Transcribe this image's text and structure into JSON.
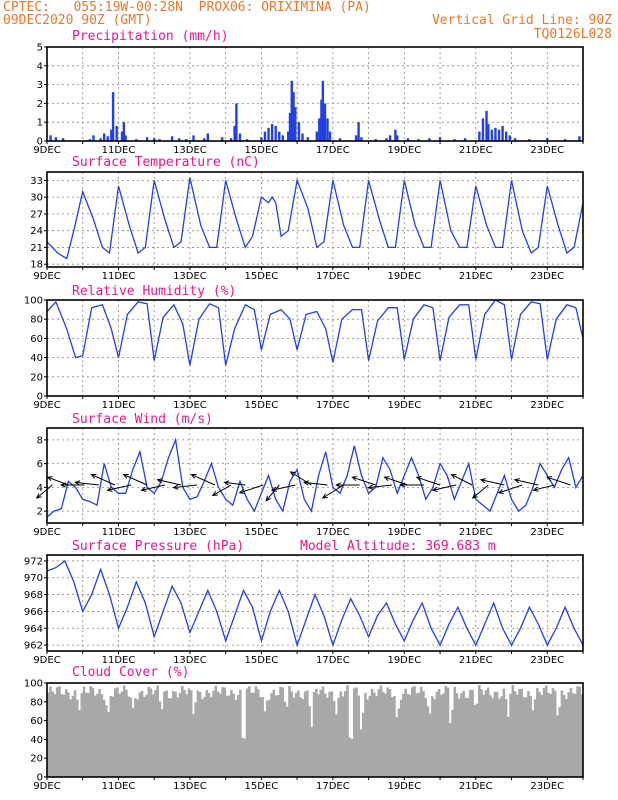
{
  "header": {
    "line1_left": "CPTEC:   055:19W-00:28N  PROX06: ORIXIMINA (PA)",
    "line2_left": "09DEC2020 90Z (GMT)",
    "line2_right": "Vertical Grid Line: 90Z",
    "line3_right": "TQ0126L028"
  },
  "colors": {
    "header": "#e8792c",
    "title": "#e6198a",
    "line": "#2440e0",
    "bar": "#2440e0",
    "cloud": "#a8a8a8",
    "arrow": "#000000"
  },
  "chart_data": [
    {
      "type": "bar",
      "title": "Precipitation (mm/h)",
      "x_ticks": [
        "9DEC",
        "11DEC",
        "13DEC",
        "15DEC",
        "17DEC",
        "19DEC",
        "21DEC",
        "23DEC"
      ],
      "ylim": [
        0,
        5
      ],
      "y_ticks": [
        0,
        1,
        2,
        3,
        4,
        5
      ],
      "grid": true,
      "x_range": [
        0,
        15
      ],
      "points": [
        [
          0.1,
          0.3
        ],
        [
          0.25,
          0.2
        ],
        [
          0.45,
          0.15
        ],
        [
          1.2,
          0.1
        ],
        [
          1.3,
          0.3
        ],
        [
          1.5,
          0.15
        ],
        [
          1.6,
          0.4
        ],
        [
          1.7,
          0.25
        ],
        [
          1.8,
          0.6
        ],
        [
          1.85,
          2.6
        ],
        [
          1.95,
          0.8
        ],
        [
          2.1,
          0.5
        ],
        [
          2.15,
          1.0
        ],
        [
          2.2,
          0.3
        ],
        [
          2.5,
          0.1
        ],
        [
          2.8,
          0.2
        ],
        [
          3.0,
          0.15
        ],
        [
          3.15,
          0.1
        ],
        [
          3.5,
          0.25
        ],
        [
          3.7,
          0.15
        ],
        [
          3.9,
          0.1
        ],
        [
          4.1,
          0.3
        ],
        [
          4.4,
          0.15
        ],
        [
          4.5,
          0.4
        ],
        [
          4.9,
          0.2
        ],
        [
          5.15,
          0.15
        ],
        [
          5.25,
          0.8
        ],
        [
          5.3,
          2.0
        ],
        [
          5.4,
          0.4
        ],
        [
          5.6,
          0.1
        ],
        [
          6.0,
          0.2
        ],
        [
          6.1,
          0.5
        ],
        [
          6.2,
          0.7
        ],
        [
          6.3,
          0.9
        ],
        [
          6.4,
          0.8
        ],
        [
          6.5,
          0.5
        ],
        [
          6.6,
          0.3
        ],
        [
          6.75,
          0.5
        ],
        [
          6.8,
          1.5
        ],
        [
          6.85,
          3.2
        ],
        [
          6.9,
          2.6
        ],
        [
          6.95,
          1.8
        ],
        [
          7.05,
          1.0
        ],
        [
          7.15,
          0.4
        ],
        [
          7.3,
          0.2
        ],
        [
          7.55,
          0.5
        ],
        [
          7.62,
          1.2
        ],
        [
          7.68,
          2.2
        ],
        [
          7.72,
          3.2
        ],
        [
          7.78,
          2.0
        ],
        [
          7.85,
          1.2
        ],
        [
          7.92,
          0.5
        ],
        [
          8.2,
          0.15
        ],
        [
          8.65,
          0.3
        ],
        [
          8.72,
          1.0
        ],
        [
          8.8,
          0.2
        ],
        [
          9.2,
          0.1
        ],
        [
          9.5,
          0.15
        ],
        [
          9.6,
          0.3
        ],
        [
          9.75,
          0.6
        ],
        [
          9.8,
          0.3
        ],
        [
          10.1,
          0.15
        ],
        [
          10.4,
          0.1
        ],
        [
          10.7,
          0.15
        ],
        [
          11.0,
          0.2
        ],
        [
          11.4,
          0.1
        ],
        [
          11.7,
          0.15
        ],
        [
          12.1,
          0.5
        ],
        [
          12.2,
          1.2
        ],
        [
          12.3,
          1.6
        ],
        [
          12.35,
          0.9
        ],
        [
          12.45,
          0.6
        ],
        [
          12.55,
          0.7
        ],
        [
          12.65,
          0.6
        ],
        [
          12.75,
          0.8
        ],
        [
          12.85,
          0.5
        ],
        [
          12.95,
          0.3
        ],
        [
          13.1,
          0.15
        ],
        [
          13.5,
          0.1
        ],
        [
          14.0,
          0.15
        ],
        [
          14.5,
          0.1
        ],
        [
          14.9,
          0.25
        ]
      ]
    },
    {
      "type": "line",
      "title": "Surface Temperature (nC)",
      "x_ticks": [
        "9DEC",
        "11DEC",
        "13DEC",
        "15DEC",
        "17DEC",
        "19DEC",
        "21DEC",
        "23DEC"
      ],
      "ylim": [
        17.5,
        34.5
      ],
      "y_ticks": [
        18,
        21,
        24,
        27,
        30,
        33
      ],
      "grid": true,
      "x_range": [
        0,
        15
      ],
      "x": [
        0,
        0.3,
        0.55,
        0.75,
        1.0,
        1.3,
        1.55,
        1.75,
        2.0,
        2.3,
        2.55,
        2.75,
        3.0,
        3.3,
        3.55,
        3.75,
        4.0,
        4.3,
        4.55,
        4.75,
        5.0,
        5.3,
        5.55,
        5.75,
        6.0,
        6.2,
        6.3,
        6.4,
        6.55,
        6.75,
        7.0,
        7.3,
        7.55,
        7.75,
        8.0,
        8.3,
        8.55,
        8.75,
        9.0,
        9.3,
        9.55,
        9.75,
        10.0,
        10.3,
        10.55,
        10.75,
        11.0,
        11.3,
        11.55,
        11.75,
        12.0,
        12.3,
        12.55,
        12.75,
        13.0,
        13.3,
        13.55,
        13.75,
        14.0,
        14.3,
        14.55,
        14.75,
        15.0
      ],
      "y": [
        22,
        20,
        19,
        24,
        31,
        26,
        21,
        20,
        32,
        25,
        20,
        21,
        33,
        26,
        21,
        22,
        33.5,
        25,
        21,
        21,
        33,
        26,
        21,
        23,
        30,
        29,
        30,
        29,
        23,
        24,
        33,
        28,
        21,
        22,
        33,
        25,
        21,
        21,
        33,
        26,
        21,
        21,
        33,
        25,
        21,
        21,
        33,
        24,
        21,
        21,
        32,
        25,
        21,
        21,
        33,
        24,
        20,
        21,
        32,
        25,
        20,
        21,
        29
      ]
    },
    {
      "type": "line",
      "title": "Relative Humidity (%)",
      "x_ticks": [
        "9DEC",
        "11DEC",
        "13DEC",
        "15DEC",
        "17DEC",
        "19DEC",
        "21DEC",
        "23DEC"
      ],
      "ylim": [
        0,
        100
      ],
      "y_ticks": [
        0,
        20,
        40,
        60,
        80,
        100
      ],
      "grid": true,
      "x_range": [
        0,
        15
      ],
      "x": [
        0,
        0.25,
        0.55,
        0.8,
        1.0,
        1.25,
        1.55,
        1.8,
        2.0,
        2.25,
        2.55,
        2.8,
        3.0,
        3.25,
        3.55,
        3.8,
        4.0,
        4.25,
        4.55,
        4.8,
        5.0,
        5.25,
        5.55,
        5.8,
        6.0,
        6.25,
        6.55,
        6.8,
        7.0,
        7.25,
        7.55,
        7.8,
        8.0,
        8.25,
        8.55,
        8.8,
        9.0,
        9.25,
        9.55,
        9.8,
        10.0,
        10.25,
        10.55,
        10.8,
        11.0,
        11.25,
        11.55,
        11.8,
        12.0,
        12.25,
        12.55,
        12.8,
        13.0,
        13.25,
        13.55,
        13.8,
        14.0,
        14.25,
        14.55,
        14.8,
        15.0
      ],
      "y": [
        88,
        98,
        70,
        40,
        42,
        92,
        95,
        70,
        40,
        85,
        98,
        96,
        37,
        82,
        95,
        75,
        32,
        80,
        96,
        92,
        32,
        70,
        95,
        90,
        48,
        85,
        90,
        80,
        48,
        85,
        88,
        70,
        35,
        80,
        90,
        90,
        37,
        78,
        92,
        92,
        38,
        80,
        95,
        92,
        37,
        82,
        95,
        95,
        38,
        85,
        100,
        95,
        38,
        85,
        98,
        96,
        38,
        80,
        95,
        92,
        60
      ]
    },
    {
      "type": "line",
      "title": "Surface Wind (m/s)",
      "x_ticks": [
        "9DEC",
        "11DEC",
        "13DEC",
        "15DEC",
        "17DEC",
        "19DEC",
        "21DEC",
        "23DEC"
      ],
      "ylim": [
        1,
        9
      ],
      "y_ticks": [
        2,
        4,
        6,
        8
      ],
      "grid": true,
      "x_range": [
        0,
        15
      ],
      "x": [
        0,
        0.2,
        0.4,
        0.6,
        0.8,
        1.0,
        1.2,
        1.4,
        1.6,
        1.8,
        2.0,
        2.2,
        2.4,
        2.6,
        2.8,
        3.0,
        3.2,
        3.4,
        3.6,
        3.8,
        4.0,
        4.2,
        4.4,
        4.6,
        4.8,
        5.0,
        5.2,
        5.4,
        5.6,
        5.8,
        6.0,
        6.2,
        6.4,
        6.6,
        6.8,
        7.0,
        7.2,
        7.4,
        7.6,
        7.8,
        8.0,
        8.2,
        8.4,
        8.6,
        8.8,
        9.0,
        9.2,
        9.4,
        9.6,
        9.8,
        10.0,
        10.2,
        10.4,
        10.6,
        10.8,
        11.0,
        11.2,
        11.4,
        11.6,
        11.8,
        12.0,
        12.2,
        12.4,
        12.6,
        12.8,
        13.0,
        13.2,
        13.4,
        13.6,
        13.8,
        14.0,
        14.2,
        14.4,
        14.6,
        14.8,
        15.0
      ],
      "y": [
        1.5,
        2.0,
        2.2,
        4.5,
        4.0,
        3.0,
        2.8,
        2.5,
        6.0,
        4.0,
        3.5,
        3.5,
        5.5,
        7.0,
        4.0,
        3.5,
        4.5,
        6.5,
        8.0,
        4.0,
        3.0,
        3.2,
        4.5,
        6.0,
        4.0,
        3.0,
        2.5,
        4.5,
        3.0,
        2.0,
        3.5,
        5.0,
        3.0,
        2.0,
        4.5,
        5.5,
        3.0,
        2.0,
        5.0,
        7.0,
        4.0,
        3.5,
        5.0,
        7.5,
        5.0,
        3.5,
        4.0,
        6.5,
        5.5,
        3.5,
        5.0,
        6.5,
        5.0,
        3.0,
        4.0,
        6.0,
        5.0,
        3.0,
        4.5,
        6.0,
        3.0,
        2.5,
        2.0,
        3.5,
        5.0,
        3.0,
        2.0,
        2.5,
        4.0,
        6.0,
        5.0,
        4.0,
        5.5,
        6.5,
        4.0,
        5.0
      ],
      "vectors": [
        {
          "x": 0.15,
          "u": -0.6,
          "v": -0.5
        },
        {
          "x": 0.6,
          "u": -0.8,
          "v": 0.3
        },
        {
          "x": 1.05,
          "u": -0.9,
          "v": 0.0
        },
        {
          "x": 1.45,
          "u": -0.9,
          "v": 0.1
        },
        {
          "x": 1.9,
          "u": -0.9,
          "v": 0.4
        },
        {
          "x": 2.35,
          "u": -0.9,
          "v": -0.2
        },
        {
          "x": 2.8,
          "u": -0.9,
          "v": 0.4
        },
        {
          "x": 3.3,
          "u": -0.9,
          "v": -0.2
        },
        {
          "x": 3.75,
          "u": -0.9,
          "v": 0.2
        },
        {
          "x": 4.2,
          "u": -0.9,
          "v": -0.1
        },
        {
          "x": 4.7,
          "u": -0.9,
          "v": 0.4
        },
        {
          "x": 5.15,
          "u": -0.7,
          "v": -0.4
        },
        {
          "x": 5.55,
          "u": -0.8,
          "v": 0.1
        },
        {
          "x": 6.05,
          "u": -0.9,
          "v": -0.3
        },
        {
          "x": 6.5,
          "u": -0.5,
          "v": -0.6
        },
        {
          "x": 6.95,
          "u": -0.9,
          "v": -0.2
        },
        {
          "x": 7.4,
          "u": -0.8,
          "v": 0.5
        },
        {
          "x": 7.85,
          "u": -0.9,
          "v": 0.1
        },
        {
          "x": 8.3,
          "u": -0.8,
          "v": -0.5
        },
        {
          "x": 8.75,
          "u": -0.9,
          "v": 0.0
        },
        {
          "x": 9.2,
          "u": -0.9,
          "v": 0.3
        },
        {
          "x": 9.65,
          "u": -0.9,
          "v": -0.1
        },
        {
          "x": 10.1,
          "u": -0.9,
          "v": 0.3
        },
        {
          "x": 10.55,
          "u": -0.9,
          "v": 0.0
        },
        {
          "x": 11.0,
          "u": -0.9,
          "v": 0.3
        },
        {
          "x": 11.45,
          "u": -0.9,
          "v": -0.2
        },
        {
          "x": 11.9,
          "u": -0.8,
          "v": 0.4
        },
        {
          "x": 12.35,
          "u": -0.6,
          "v": -0.5
        },
        {
          "x": 12.8,
          "u": -0.9,
          "v": 0.2
        },
        {
          "x": 13.3,
          "u": -0.9,
          "v": -0.3
        },
        {
          "x": 13.75,
          "u": -0.9,
          "v": 0.2
        },
        {
          "x": 14.2,
          "u": -0.8,
          "v": -0.2
        },
        {
          "x": 14.65,
          "u": -0.9,
          "v": 0.3
        }
      ]
    },
    {
      "type": "line",
      "title": "Surface Pressure (hPa)",
      "annotation": "Model Altitude: 369.683 m",
      "x_ticks": [
        "9DEC",
        "11DEC",
        "13DEC",
        "15DEC",
        "17DEC",
        "19DEC",
        "21DEC",
        "23DEC"
      ],
      "ylim": [
        961.3,
        972.7
      ],
      "y_ticks": [
        962,
        964,
        966,
        968,
        970,
        972
      ],
      "grid": true,
      "x_range": [
        0,
        15
      ],
      "x": [
        0,
        0.25,
        0.5,
        0.75,
        1.0,
        1.25,
        1.5,
        1.75,
        2.0,
        2.25,
        2.5,
        2.75,
        3.0,
        3.25,
        3.5,
        3.75,
        4.0,
        4.25,
        4.5,
        4.75,
        5.0,
        5.25,
        5.5,
        5.75,
        6.0,
        6.25,
        6.5,
        6.75,
        7.0,
        7.25,
        7.5,
        7.75,
        8.0,
        8.25,
        8.5,
        8.75,
        9.0,
        9.25,
        9.5,
        9.75,
        10.0,
        10.25,
        10.5,
        10.75,
        11.0,
        11.25,
        11.5,
        11.75,
        12.0,
        12.25,
        12.5,
        12.75,
        13.0,
        13.25,
        13.5,
        13.75,
        14.0,
        14.25,
        14.5,
        14.75,
        15.0
      ],
      "y": [
        970.8,
        971.2,
        972.0,
        969.5,
        966.0,
        968.0,
        971.0,
        968.0,
        964.0,
        966.5,
        969.5,
        967.0,
        963.0,
        966.0,
        969.0,
        967.0,
        963.5,
        966.0,
        968.5,
        966.0,
        962.5,
        965.5,
        968.5,
        966.5,
        962.5,
        966.0,
        968.5,
        966.0,
        962.0,
        965.0,
        968.0,
        965.5,
        962.0,
        965.0,
        967.5,
        965.5,
        963.0,
        965.5,
        967.0,
        964.5,
        962.5,
        965.0,
        967.0,
        964.0,
        962.0,
        964.5,
        966.5,
        964.0,
        962.0,
        964.5,
        967.0,
        964.0,
        962.0,
        964.0,
        966.5,
        964.5,
        962.0,
        964.0,
        966.5,
        964.0,
        962.0
      ]
    },
    {
      "type": "bar",
      "title": "Cloud Cover (%)",
      "x_ticks": [
        "9DEC",
        "11DEC",
        "13DEC",
        "15DEC",
        "17DEC",
        "19DEC",
        "21DEC",
        "23DEC"
      ],
      "ylim": [
        0,
        100
      ],
      "y_ticks": [
        0,
        20,
        40,
        60,
        80,
        100
      ],
      "grid": false,
      "x_range": [
        0,
        15
      ],
      "base_level": 90,
      "dips": [
        [
          0.9,
          70
        ],
        [
          1.7,
          62
        ],
        [
          2.4,
          72
        ],
        [
          3.2,
          68
        ],
        [
          4.1,
          65
        ],
        [
          5.5,
          12
        ],
        [
          6.1,
          68
        ],
        [
          6.7,
          70
        ],
        [
          7.4,
          50
        ],
        [
          8.1,
          65
        ],
        [
          8.5,
          10
        ],
        [
          8.8,
          40
        ],
        [
          9.8,
          55
        ],
        [
          10.7,
          60
        ],
        [
          11.3,
          48
        ],
        [
          12.0,
          70
        ],
        [
          12.9,
          62
        ],
        [
          13.6,
          70
        ],
        [
          14.3,
          60
        ]
      ]
    }
  ]
}
